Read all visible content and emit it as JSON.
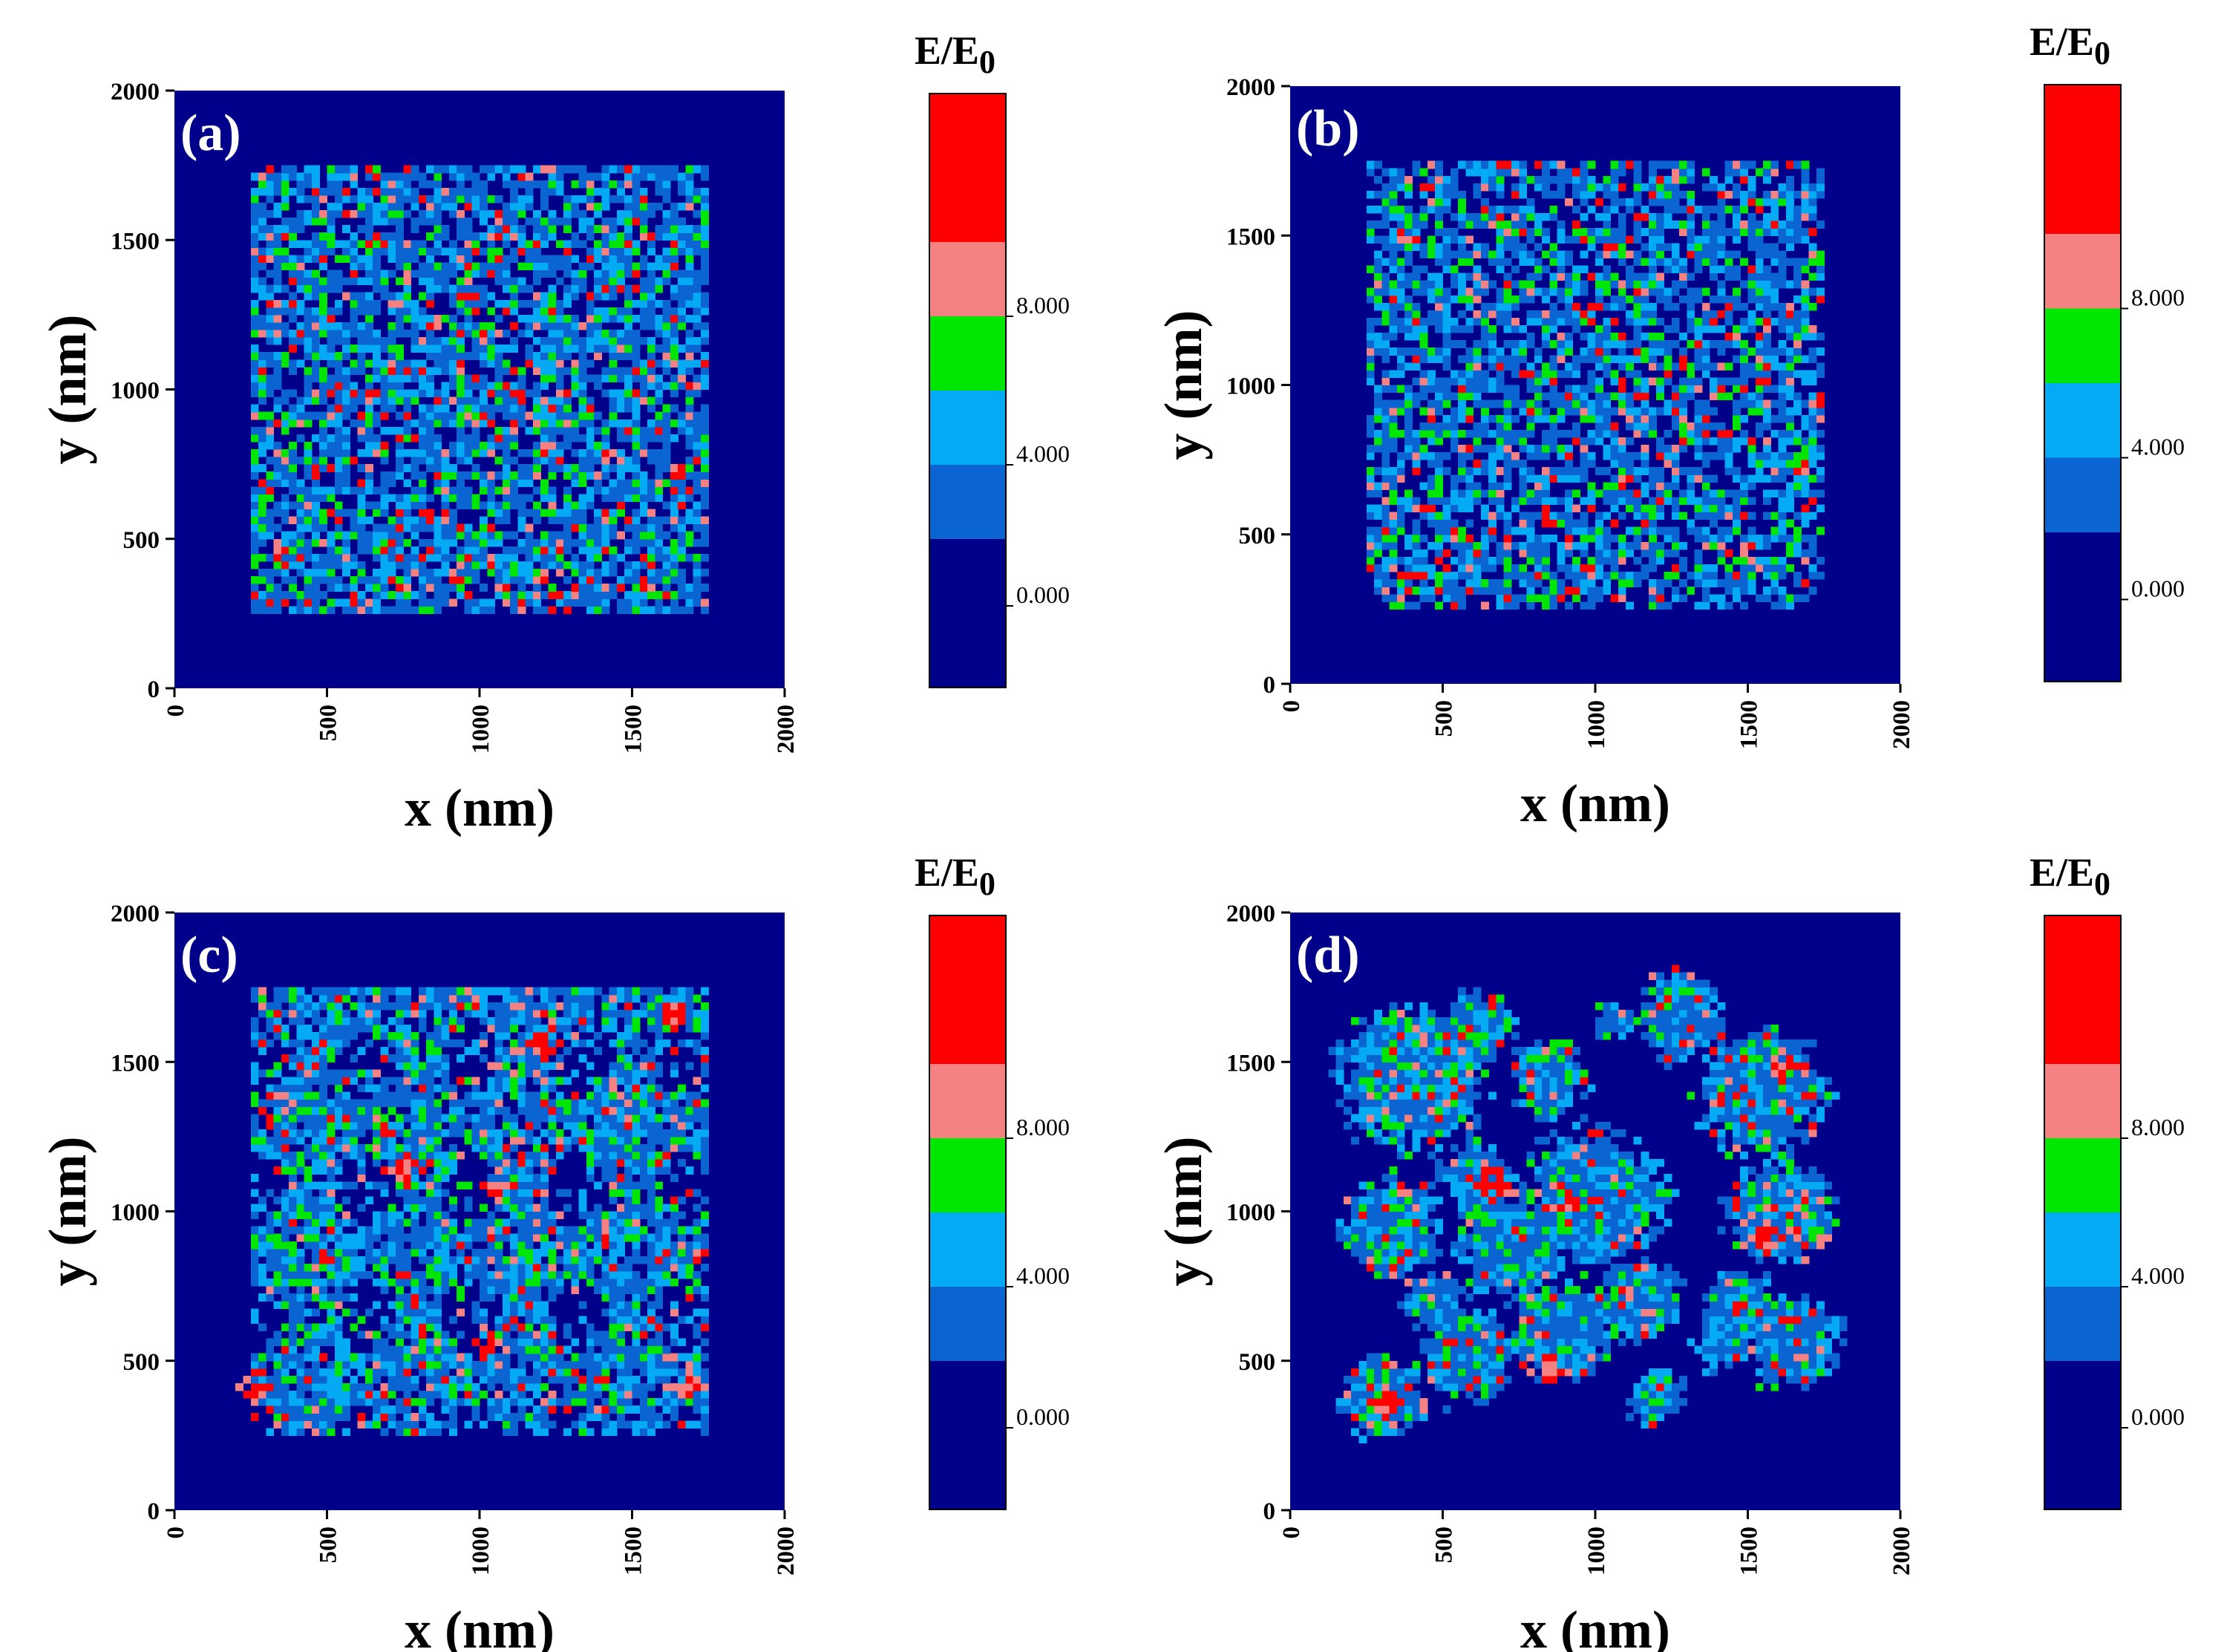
{
  "figure": {
    "colorbar_title_main": "E/E",
    "colorbar_title_sub": "0",
    "colorbar_levels": [
      {
        "label": "0.000",
        "color": "#00008b"
      },
      {
        "label": "",
        "color": "#0a64d2"
      },
      {
        "label": "4.000",
        "color": "#05aaf5"
      },
      {
        "label": "",
        "color": "#00e600"
      },
      {
        "label": "8.000",
        "color": "#f58282"
      },
      {
        "label": "",
        "color": "#ff0000"
      }
    ],
    "colors": {
      "background": "#00008b",
      "level1": "#0a64d2",
      "level2": "#05aaf5",
      "level3": "#00e600",
      "level4": "#f58282",
      "level5": "#ff0000",
      "text": "#000000",
      "panel_label": "#ffffff"
    }
  },
  "chart_data": [
    {
      "type": "heatmap",
      "panel": "(a)",
      "xlabel": "x (nm)",
      "ylabel": "y (nm)",
      "xlim": [
        0,
        2000
      ],
      "ylim": [
        0,
        2000
      ],
      "xticks": [
        "0",
        "500",
        "1000",
        "1500",
        "2000"
      ],
      "yticks": [
        "0",
        "500",
        "1000",
        "1500",
        "2000"
      ],
      "colorbar_label": "E/E0",
      "colorbar_ticks": [
        "0.000",
        "4.000",
        "8.000"
      ],
      "field_extent_x": [
        240,
        1760
      ],
      "field_extent_y": [
        240,
        1760
      ],
      "pattern": "dense uniform speckle",
      "seed": 11
    },
    {
      "type": "heatmap",
      "panel": "(b)",
      "xlabel": "x (nm)",
      "ylabel": "y (nm)",
      "xlim": [
        0,
        2000
      ],
      "ylim": [
        0,
        2000
      ],
      "xticks": [
        "0",
        "500",
        "1000",
        "1500",
        "2000"
      ],
      "yticks": [
        "0",
        "500",
        "1000",
        "1500",
        "2000"
      ],
      "colorbar_label": "E/E0",
      "colorbar_ticks": [
        "0.000",
        "4.000",
        "8.000"
      ],
      "field_extent_x": [
        240,
        1760
      ],
      "field_extent_y": [
        240,
        1760
      ],
      "pattern": "speckle with small gaps",
      "seed": 23
    },
    {
      "type": "heatmap",
      "panel": "(c)",
      "xlabel": "x (nm)",
      "ylabel": "y (nm)",
      "xlim": [
        0,
        2000
      ],
      "ylim": [
        0,
        2000
      ],
      "xticks": [
        "0",
        "500",
        "1000",
        "1500",
        "2000"
      ],
      "yticks": [
        "0",
        "500",
        "1000",
        "1500",
        "2000"
      ],
      "colorbar_label": "E/E0",
      "colorbar_ticks": [
        "0.000",
        "4.000",
        "8.000"
      ],
      "field_extent_x": [
        240,
        1760
      ],
      "field_extent_y": [
        240,
        1760
      ],
      "pattern": "coarse connected network",
      "seed": 37
    },
    {
      "type": "heatmap",
      "panel": "(d)",
      "xlabel": "x (nm)",
      "ylabel": "y (nm)",
      "xlim": [
        0,
        2000
      ],
      "ylim": [
        0,
        2000
      ],
      "xticks": [
        "0",
        "500",
        "1000",
        "1500",
        "2000"
      ],
      "yticks": [
        "0",
        "500",
        "1000",
        "1500",
        "2000"
      ],
      "colorbar_label": "E/E0",
      "colorbar_ticks": [
        "0.000",
        "4.000",
        "8.000"
      ],
      "field_extent_x": [
        200,
        1800
      ],
      "field_extent_y": [
        200,
        1800
      ],
      "pattern": "isolated clusters",
      "seed": 53
    }
  ]
}
